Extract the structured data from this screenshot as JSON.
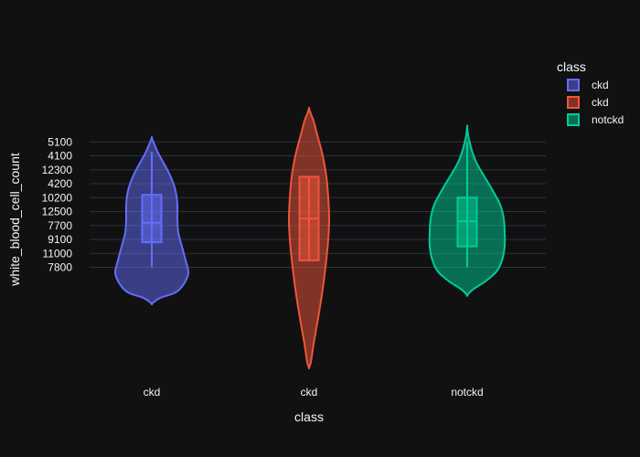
{
  "chart_data": {
    "type": "violin",
    "xlabel": "class",
    "ylabel": "white_blood_cell_count",
    "legend": {
      "title": "class",
      "placement": "right"
    },
    "y_categories": [
      "7800",
      "11000",
      "9100",
      "7700",
      "12500",
      "10200",
      "4200",
      "12300",
      "4100",
      "5100"
    ],
    "series": [
      {
        "name": "ckd",
        "category": "ckd",
        "color": "#636efa",
        "box": {
          "q1": 1.8,
          "median": 3.2,
          "q3": 5.2,
          "whisker_low": 0,
          "whisker_high": 8.3
        }
      },
      {
        "name": "ckd",
        "category": "ckd",
        "color": "#ef553b",
        "box": {
          "q1": 0.5,
          "median": 3.5,
          "q3": 6.5,
          "whisker_low": 0.5,
          "whisker_high": 6.5
        }
      },
      {
        "name": "notckd",
        "category": "notckd",
        "color": "#00cc96",
        "box": {
          "q1": 1.5,
          "median": 3.3,
          "q3": 5.0,
          "whisker_low": 0,
          "whisker_high": 9.0
        }
      }
    ]
  }
}
